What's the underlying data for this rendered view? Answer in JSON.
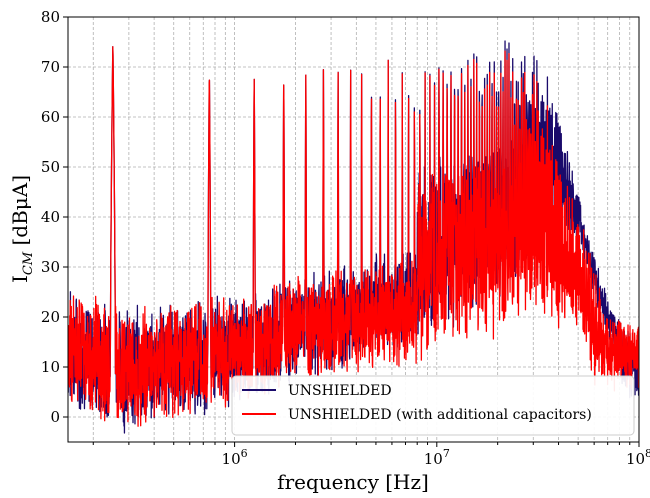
{
  "chart_data": {
    "type": "line",
    "xlabel": "frequency [Hz]",
    "ylabel_main": "I",
    "ylabel_sub": "CM",
    "ylabel_unit": " [dBμA]",
    "x_scale": "log",
    "xlim": [
      150000,
      100000000
    ],
    "ylim": [
      -5,
      80
    ],
    "x_ticks": [
      {
        "value": 1000000,
        "base": "10",
        "exp": "6"
      },
      {
        "value": 10000000,
        "base": "10",
        "exp": "7"
      },
      {
        "value": 100000000,
        "base": "10",
        "exp": "8"
      }
    ],
    "y_ticks": [
      0,
      10,
      20,
      30,
      40,
      50,
      60,
      70,
      80
    ],
    "y_tick_labels": [
      "0",
      "10",
      "20",
      "30",
      "40",
      "50",
      "60",
      "70",
      "80"
    ],
    "grid": true,
    "legend_position": "bottom-right",
    "harmonic_fundamental_hz": 250000,
    "series": [
      {
        "name": "UNSHIELDED",
        "color": "#1a0a6b",
        "peak_envelope": [
          [
            250000,
            75
          ],
          [
            750000,
            70
          ],
          [
            1250000,
            69
          ],
          [
            2000000,
            70
          ],
          [
            4000000,
            71
          ],
          [
            7000000,
            72
          ],
          [
            10000000,
            72
          ],
          [
            15000000,
            73
          ],
          [
            20000000,
            75
          ],
          [
            25000000,
            76
          ],
          [
            30000000,
            75
          ],
          [
            35000000,
            70
          ],
          [
            40000000,
            60
          ],
          [
            50000000,
            45
          ],
          [
            60000000,
            25
          ],
          [
            100000000,
            15
          ]
        ],
        "floor_envelope": [
          [
            150000,
            5
          ],
          [
            300000,
            0
          ],
          [
            500000,
            3
          ],
          [
            1000000,
            5
          ],
          [
            2000000,
            10
          ],
          [
            5000000,
            15
          ],
          [
            10000000,
            20
          ],
          [
            20000000,
            25
          ],
          [
            30000000,
            35
          ],
          [
            40000000,
            40
          ],
          [
            50000000,
            38
          ],
          [
            60000000,
            30
          ],
          [
            80000000,
            10
          ],
          [
            100000000,
            5
          ]
        ]
      },
      {
        "name": "UNSHIELDED (with additional capacitors)",
        "color": "#ff0000",
        "peak_envelope": [
          [
            250000,
            75
          ],
          [
            750000,
            70
          ],
          [
            1250000,
            69
          ],
          [
            2000000,
            70
          ],
          [
            4000000,
            71
          ],
          [
            7000000,
            72
          ],
          [
            10000000,
            72
          ],
          [
            15000000,
            72
          ],
          [
            20000000,
            73
          ],
          [
            25000000,
            74
          ],
          [
            30000000,
            72
          ],
          [
            35000000,
            65
          ],
          [
            40000000,
            50
          ],
          [
            50000000,
            42
          ],
          [
            60000000,
            30
          ],
          [
            70000000,
            20
          ],
          [
            100000000,
            18
          ]
        ],
        "floor_envelope": [
          [
            150000,
            5
          ],
          [
            300000,
            0
          ],
          [
            500000,
            3
          ],
          [
            1000000,
            5
          ],
          [
            2000000,
            10
          ],
          [
            5000000,
            12
          ],
          [
            10000000,
            15
          ],
          [
            20000000,
            18
          ],
          [
            30000000,
            22
          ],
          [
            50000000,
            20
          ],
          [
            60000000,
            10
          ],
          [
            100000000,
            8
          ]
        ]
      }
    ]
  }
}
